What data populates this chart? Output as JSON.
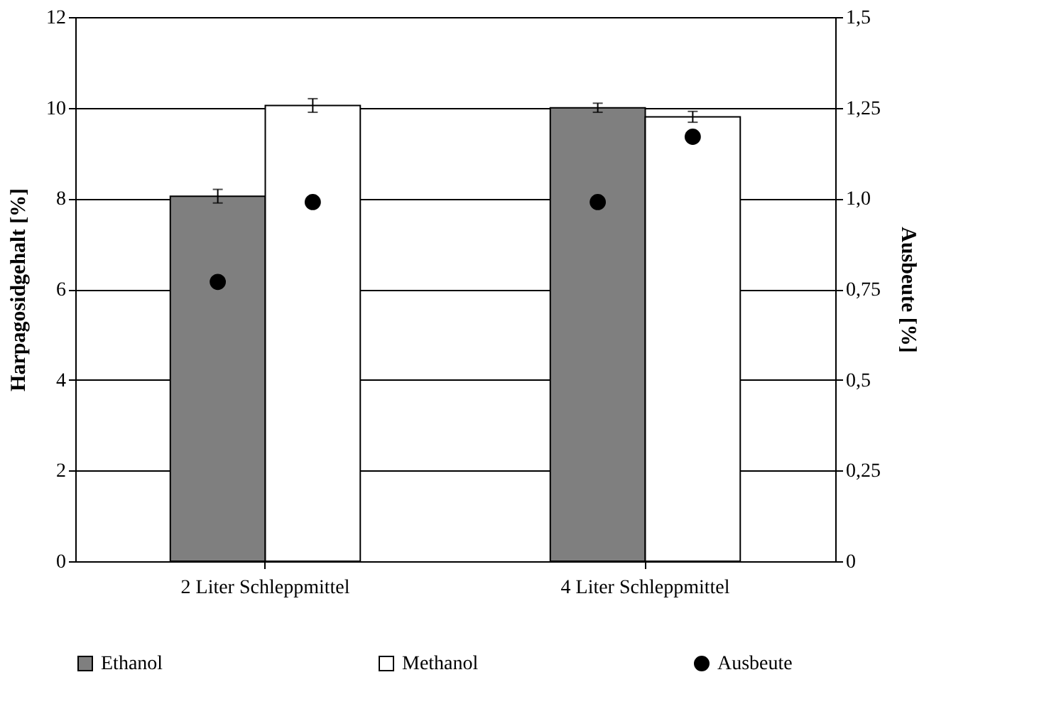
{
  "chart_data": {
    "type": "bar",
    "ylabel": "Harpagosidgehalt [%]",
    "y2label": "Ausbeute [%]",
    "categories": [
      "2 Liter Schleppmittel",
      "4 Liter Schleppmittel"
    ],
    "series": [
      {
        "name": "Ethanol",
        "color": "#7f7f7f",
        "values": [
          8.05,
          10.0
        ],
        "errors": [
          0.15,
          0.1
        ]
      },
      {
        "name": "Methanol",
        "color": "#ffffff",
        "values": [
          10.05,
          9.8
        ],
        "errors": [
          0.15,
          0.12
        ]
      },
      {
        "name": "Ausbeute",
        "type": "scatter",
        "axis": "y2",
        "color": "#000000",
        "x": [
          "2 Liter Schleppmittel",
          "2 Liter Schleppmittel",
          "4 Liter Schleppmittel",
          "4 Liter Schleppmittel"
        ],
        "values": [
          0.77,
          0.99,
          0.99,
          1.17
        ]
      }
    ],
    "ylim": [
      0,
      12
    ],
    "yticks": [
      0,
      2,
      4,
      6,
      8,
      10,
      12
    ],
    "y2lim": [
      0,
      1.5
    ],
    "y2ticks": [
      0,
      {
        "value": 0.25,
        "label": "0,25"
      },
      {
        "value": 0.5,
        "label": "0,5"
      },
      {
        "value": 0.75,
        "label": "0,75"
      },
      {
        "value": 1.0,
        "label": "1,0"
      },
      {
        "value": 1.25,
        "label": "1,25"
      },
      {
        "value": 1.5,
        "label": "1,5"
      }
    ],
    "grid": "y",
    "legend": "bottom"
  }
}
